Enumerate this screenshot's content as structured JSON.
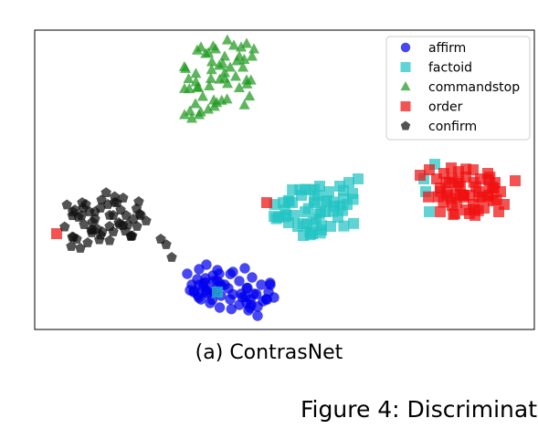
{
  "chart_data": {
    "type": "scatter",
    "title": "",
    "xlabel": "",
    "ylabel": "",
    "grid": false,
    "axis_ticks": false,
    "legend_placement": "top-right",
    "series": [
      {
        "name": "affirm",
        "marker": "circle",
        "color": "#0000ee",
        "cluster": {
          "cx": 250,
          "cy": 318,
          "rx": 50,
          "ry": 22
        },
        "points": [
          [
            205,
            300
          ],
          [
            210,
            312
          ],
          [
            218,
            295
          ],
          [
            225,
            305
          ],
          [
            232,
            318
          ],
          [
            240,
            300
          ],
          [
            246,
            312
          ],
          [
            255,
            298
          ],
          [
            262,
            308
          ],
          [
            270,
            316
          ],
          [
            278,
            322
          ],
          [
            286,
            312
          ],
          [
            294,
            320
          ],
          [
            300,
            326
          ],
          [
            282,
            336
          ],
          [
            272,
            340
          ],
          [
            262,
            334
          ],
          [
            252,
            328
          ],
          [
            242,
            324
          ],
          [
            230,
            332
          ],
          [
            220,
            328
          ],
          [
            212,
            320
          ],
          [
            226,
            290
          ],
          [
            238,
            296
          ],
          [
            264,
            322
          ],
          [
            276,
            304
          ],
          [
            288,
            330
          ],
          [
            296,
            312
          ],
          [
            250,
            316
          ],
          [
            234,
            308
          ],
          [
            216,
            306
          ],
          [
            208,
            318
          ],
          [
            268,
            294
          ],
          [
            282,
            346
          ],
          [
            270,
            332
          ]
        ]
      },
      {
        "name": "factoid",
        "marker": "square",
        "color": "#22c3c3",
        "cluster": {
          "cx": 345,
          "cy": 230,
          "rx": 50,
          "ry": 28
        },
        "points": [
          [
            305,
            238
          ],
          [
            312,
            230
          ],
          [
            320,
            222
          ],
          [
            330,
            214
          ],
          [
            340,
            208
          ],
          [
            350,
            204
          ],
          [
            360,
            210
          ],
          [
            372,
            204
          ],
          [
            382,
            200
          ],
          [
            392,
            196
          ],
          [
            386,
            212
          ],
          [
            376,
            218
          ],
          [
            366,
            226
          ],
          [
            356,
            232
          ],
          [
            346,
            240
          ],
          [
            336,
            246
          ],
          [
            326,
            248
          ],
          [
            316,
            244
          ],
          [
            352,
            252
          ],
          [
            342,
            256
          ],
          [
            332,
            258
          ],
          [
            362,
            248
          ],
          [
            358,
            220
          ],
          [
            344,
            222
          ],
          [
            334,
            232
          ],
          [
            370,
            238
          ],
          [
            322,
            236
          ],
          [
            348,
            214
          ],
          [
            380,
            224
          ],
          [
            310,
            222
          ],
          [
            476,
            180
          ],
          [
            466,
            210
          ],
          [
            470,
            232
          ],
          [
            464,
            196
          ],
          [
            238,
            320
          ]
        ]
      },
      {
        "name": "commandstop",
        "marker": "triangle",
        "color": "#1e9a1e",
        "cluster": {
          "cx": 240,
          "cy": 86,
          "rx": 40,
          "ry": 45
        },
        "points": [
          [
            220,
            52
          ],
          [
            228,
            58
          ],
          [
            236,
            54
          ],
          [
            232,
            68
          ],
          [
            240,
            72
          ],
          [
            246,
            62
          ],
          [
            256,
            50
          ],
          [
            264,
            52
          ],
          [
            270,
            48
          ],
          [
            262,
            62
          ],
          [
            276,
            62
          ],
          [
            266,
            74
          ],
          [
            252,
            74
          ],
          [
            258,
            84
          ],
          [
            246,
            86
          ],
          [
            270,
            88
          ],
          [
            216,
            96
          ],
          [
            222,
            106
          ],
          [
            214,
            114
          ],
          [
            208,
            122
          ],
          [
            218,
            126
          ],
          [
            228,
            120
          ],
          [
            202,
            126
          ],
          [
            210,
            130
          ],
          [
            234,
            110
          ],
          [
            246,
            80
          ],
          [
            278,
            54
          ]
        ]
      },
      {
        "name": "order",
        "marker": "square",
        "color": "#f01010",
        "cluster": {
          "cx": 510,
          "cy": 210,
          "rx": 42,
          "ry": 28
        },
        "points": [
          [
            460,
            192
          ],
          [
            470,
            186
          ],
          [
            478,
            196
          ],
          [
            486,
            190
          ],
          [
            494,
            184
          ],
          [
            502,
            188
          ],
          [
            510,
            194
          ],
          [
            518,
            186
          ],
          [
            526,
            196
          ],
          [
            534,
            190
          ],
          [
            542,
            200
          ],
          [
            548,
            210
          ],
          [
            540,
            220
          ],
          [
            530,
            228
          ],
          [
            520,
            236
          ],
          [
            510,
            230
          ],
          [
            500,
            222
          ],
          [
            490,
            214
          ],
          [
            482,
            206
          ],
          [
            492,
            200
          ],
          [
            504,
            204
          ],
          [
            514,
            214
          ],
          [
            524,
            210
          ],
          [
            536,
            206
          ],
          [
            552,
            224
          ],
          [
            546,
            232
          ],
          [
            528,
            216
          ],
          [
            508,
            216
          ],
          [
            498,
            234
          ],
          [
            518,
            224
          ],
          [
            564,
            198
          ],
          [
            482,
            232
          ],
          [
            62,
            256
          ],
          [
            292,
            222
          ]
        ]
      },
      {
        "name": "confirm",
        "marker": "pentagon",
        "color": "#111111",
        "cluster": {
          "cx": 115,
          "cy": 240,
          "rx": 50,
          "ry": 30
        },
        "points": [
          [
            82,
            230
          ],
          [
            90,
            222
          ],
          [
            98,
            232
          ],
          [
            104,
            240
          ],
          [
            110,
            228
          ],
          [
            118,
            224
          ],
          [
            124,
            236
          ],
          [
            130,
            244
          ],
          [
            138,
            236
          ],
          [
            146,
            240
          ],
          [
            154,
            236
          ],
          [
            160,
            242
          ],
          [
            150,
            248
          ],
          [
            140,
            246
          ],
          [
            132,
            230
          ],
          [
            120,
            248
          ],
          [
            112,
            254
          ],
          [
            100,
            252
          ],
          [
            92,
            246
          ],
          [
            84,
            262
          ],
          [
            78,
            270
          ],
          [
            88,
            272
          ],
          [
            96,
            266
          ],
          [
            124,
            254
          ],
          [
            104,
            232
          ],
          [
            176,
            262
          ],
          [
            182,
            268
          ],
          [
            188,
            282
          ],
          [
            86,
            238
          ],
          [
            128,
            222
          ],
          [
            94,
            224
          ]
        ]
      }
    ]
  }
}
